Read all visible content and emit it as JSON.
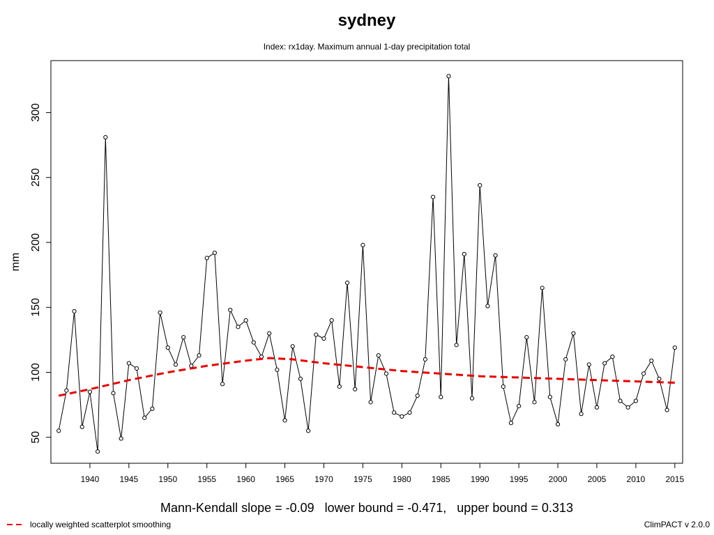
{
  "chart_data": {
    "type": "line",
    "title": "sydney",
    "subtitle": "Index: rx1day. Maximum annual 1-day precipitation total",
    "xlabel": "",
    "ylabel": "mm",
    "xlim": [
      1935,
      2016
    ],
    "ylim": [
      30,
      340
    ],
    "x_ticks": [
      1940,
      1945,
      1950,
      1955,
      1960,
      1965,
      1970,
      1975,
      1980,
      1985,
      1990,
      1995,
      2000,
      2005,
      2010,
      2015
    ],
    "y_ticks": [
      50,
      100,
      150,
      200,
      250,
      300
    ],
    "grid": false,
    "legend": "bottom-left",
    "colors": {
      "series": "#000000",
      "smooth": "#e50000"
    },
    "series": [
      {
        "x": [
          1936,
          1937,
          1938,
          1939,
          1940,
          1941,
          1942,
          1943,
          1944,
          1945,
          1946,
          1947,
          1948,
          1949,
          1950,
          1951,
          1952,
          1953,
          1954,
          1955,
          1956,
          1957,
          1958,
          1959,
          1960,
          1961,
          1962,
          1963,
          1964,
          1965,
          1966,
          1967,
          1968,
          1969,
          1970,
          1971,
          1972,
          1973,
          1974,
          1975,
          1976,
          1977,
          1978,
          1979,
          1980,
          1981,
          1982,
          1983,
          1984,
          1985,
          1986,
          1987,
          1988,
          1989,
          1990,
          1991,
          1992,
          1993,
          1994,
          1995,
          1996,
          1997,
          1998,
          1999,
          2000,
          2001,
          2002,
          2003,
          2004,
          2005,
          2006,
          2007,
          2008,
          2009,
          2010,
          2011,
          2012,
          2013,
          2014,
          2015
        ],
        "values": [
          55,
          86,
          147,
          58,
          85,
          39,
          281,
          84,
          49,
          107,
          103,
          65,
          72,
          146,
          119,
          106,
          127,
          105,
          113,
          188,
          192,
          91,
          148,
          135,
          140,
          123,
          112,
          130,
          102,
          63,
          120,
          95,
          55,
          129,
          126,
          140,
          89,
          169,
          87,
          198,
          77,
          113,
          99,
          69,
          66,
          69,
          82,
          110,
          235,
          81,
          328,
          121,
          191,
          80,
          244,
          151,
          190,
          89,
          61,
          74,
          127,
          77,
          165,
          81,
          60,
          110,
          130,
          68,
          106,
          73,
          107,
          112,
          78,
          73,
          78,
          99,
          109,
          95,
          71,
          119
        ]
      },
      {
        "name": "locally weighted scatterplot smoothing",
        "style": "dashed",
        "x": [
          1936,
          1940,
          1945,
          1950,
          1955,
          1960,
          1963,
          1966,
          1970,
          1975,
          1980,
          1985,
          1990,
          1995,
          2000,
          2005,
          2010,
          2015
        ],
        "values": [
          82,
          87,
          94,
          100,
          105,
          109,
          111,
          110,
          107,
          104,
          101,
          99,
          97,
          96,
          95,
          94,
          93,
          92
        ]
      }
    ]
  },
  "stats_line": "Mann-Kendall slope = -0.09   lower bound = -0.471,   upper bound = 0.313",
  "legend_label": "locally weighted scatterplot smoothing",
  "footer": "ClimPACT v 2.0.0"
}
